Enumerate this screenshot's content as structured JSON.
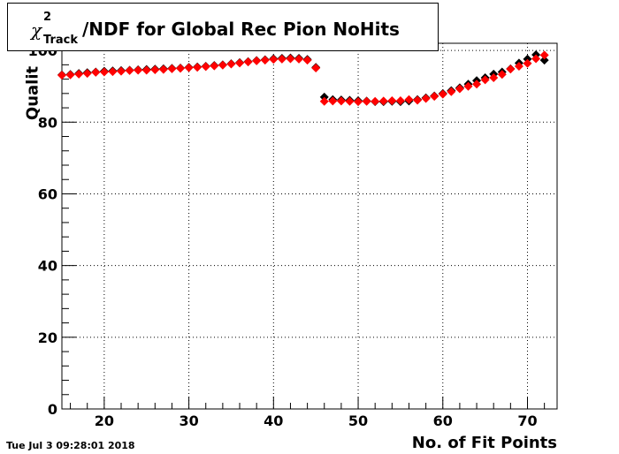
{
  "title": {
    "chi": "χ",
    "superscript": "2",
    "subscript": "Track",
    "main": "/NDF for Global Rec Pion NoHits"
  },
  "timestamp": "Tue Jul  3 09:28:01 2018",
  "chart_data": {
    "type": "scatter",
    "xlabel": "No. of Fit Points",
    "ylabel": "Qualit",
    "xlim": [
      15,
      73.5
    ],
    "ylim": [
      0,
      102
    ],
    "xticks": [
      20,
      30,
      40,
      50,
      60,
      70
    ],
    "yticks": [
      0,
      20,
      40,
      60,
      80,
      100
    ],
    "grid": true,
    "series": [
      {
        "color": "#000000",
        "x": [
          15,
          16,
          17,
          18,
          19,
          20,
          21,
          22,
          23,
          24,
          25,
          26,
          27,
          28,
          29,
          30,
          31,
          32,
          33,
          34,
          35,
          36,
          37,
          38,
          39,
          40,
          41,
          42,
          43,
          44,
          45,
          46,
          47,
          48,
          49,
          50,
          51,
          52,
          53,
          54,
          55,
          56,
          57,
          58,
          59,
          60,
          61,
          62,
          63,
          64,
          65,
          66,
          67,
          68,
          69,
          70,
          71,
          72
        ],
        "y": [
          93.2,
          93.3,
          93.6,
          93.8,
          94.0,
          94.2,
          94.3,
          94.4,
          94.5,
          94.6,
          94.7,
          94.8,
          94.9,
          95.0,
          95.1,
          95.3,
          95.4,
          95.6,
          95.8,
          96.0,
          96.3,
          96.6,
          96.9,
          97.2,
          97.4,
          97.7,
          97.8,
          97.9,
          97.8,
          97.5,
          95.3,
          87.0,
          86.3,
          86.2,
          86.1,
          86.0,
          85.9,
          85.7,
          85.7,
          85.8,
          85.7,
          85.9,
          86.3,
          86.8,
          87.3,
          88.0,
          88.8,
          89.6,
          90.6,
          91.6,
          92.4,
          93.4,
          94.0,
          94.9,
          96.5,
          97.6,
          98.8,
          97.3
        ]
      },
      {
        "color": "#ff0000",
        "x": [
          15,
          16,
          17,
          18,
          19,
          20,
          21,
          22,
          23,
          24,
          25,
          26,
          27,
          28,
          29,
          30,
          31,
          32,
          33,
          34,
          35,
          36,
          37,
          38,
          39,
          40,
          41,
          42,
          43,
          44,
          45,
          46,
          47,
          48,
          49,
          50,
          51,
          52,
          53,
          54,
          55,
          56,
          57,
          58,
          59,
          60,
          61,
          62,
          63,
          64,
          65,
          66,
          67,
          68,
          69,
          70,
          71,
          72
        ],
        "y": [
          93.1,
          93.2,
          93.4,
          93.6,
          93.9,
          94.0,
          94.1,
          94.2,
          94.4,
          94.5,
          94.5,
          94.6,
          94.7,
          94.9,
          95.0,
          95.2,
          95.3,
          95.5,
          95.7,
          95.9,
          96.2,
          96.5,
          96.8,
          97.1,
          97.3,
          97.5,
          97.6,
          97.7,
          97.6,
          97.3,
          95.1,
          85.8,
          85.9,
          85.9,
          85.8,
          85.7,
          85.8,
          85.8,
          85.9,
          86.0,
          86.0,
          86.3,
          86.1,
          86.6,
          87.2,
          87.8,
          88.5,
          89.3,
          90.0,
          90.6,
          91.8,
          92.4,
          93.3,
          94.8,
          95.6,
          96.4,
          97.7,
          98.7
        ]
      }
    ]
  }
}
